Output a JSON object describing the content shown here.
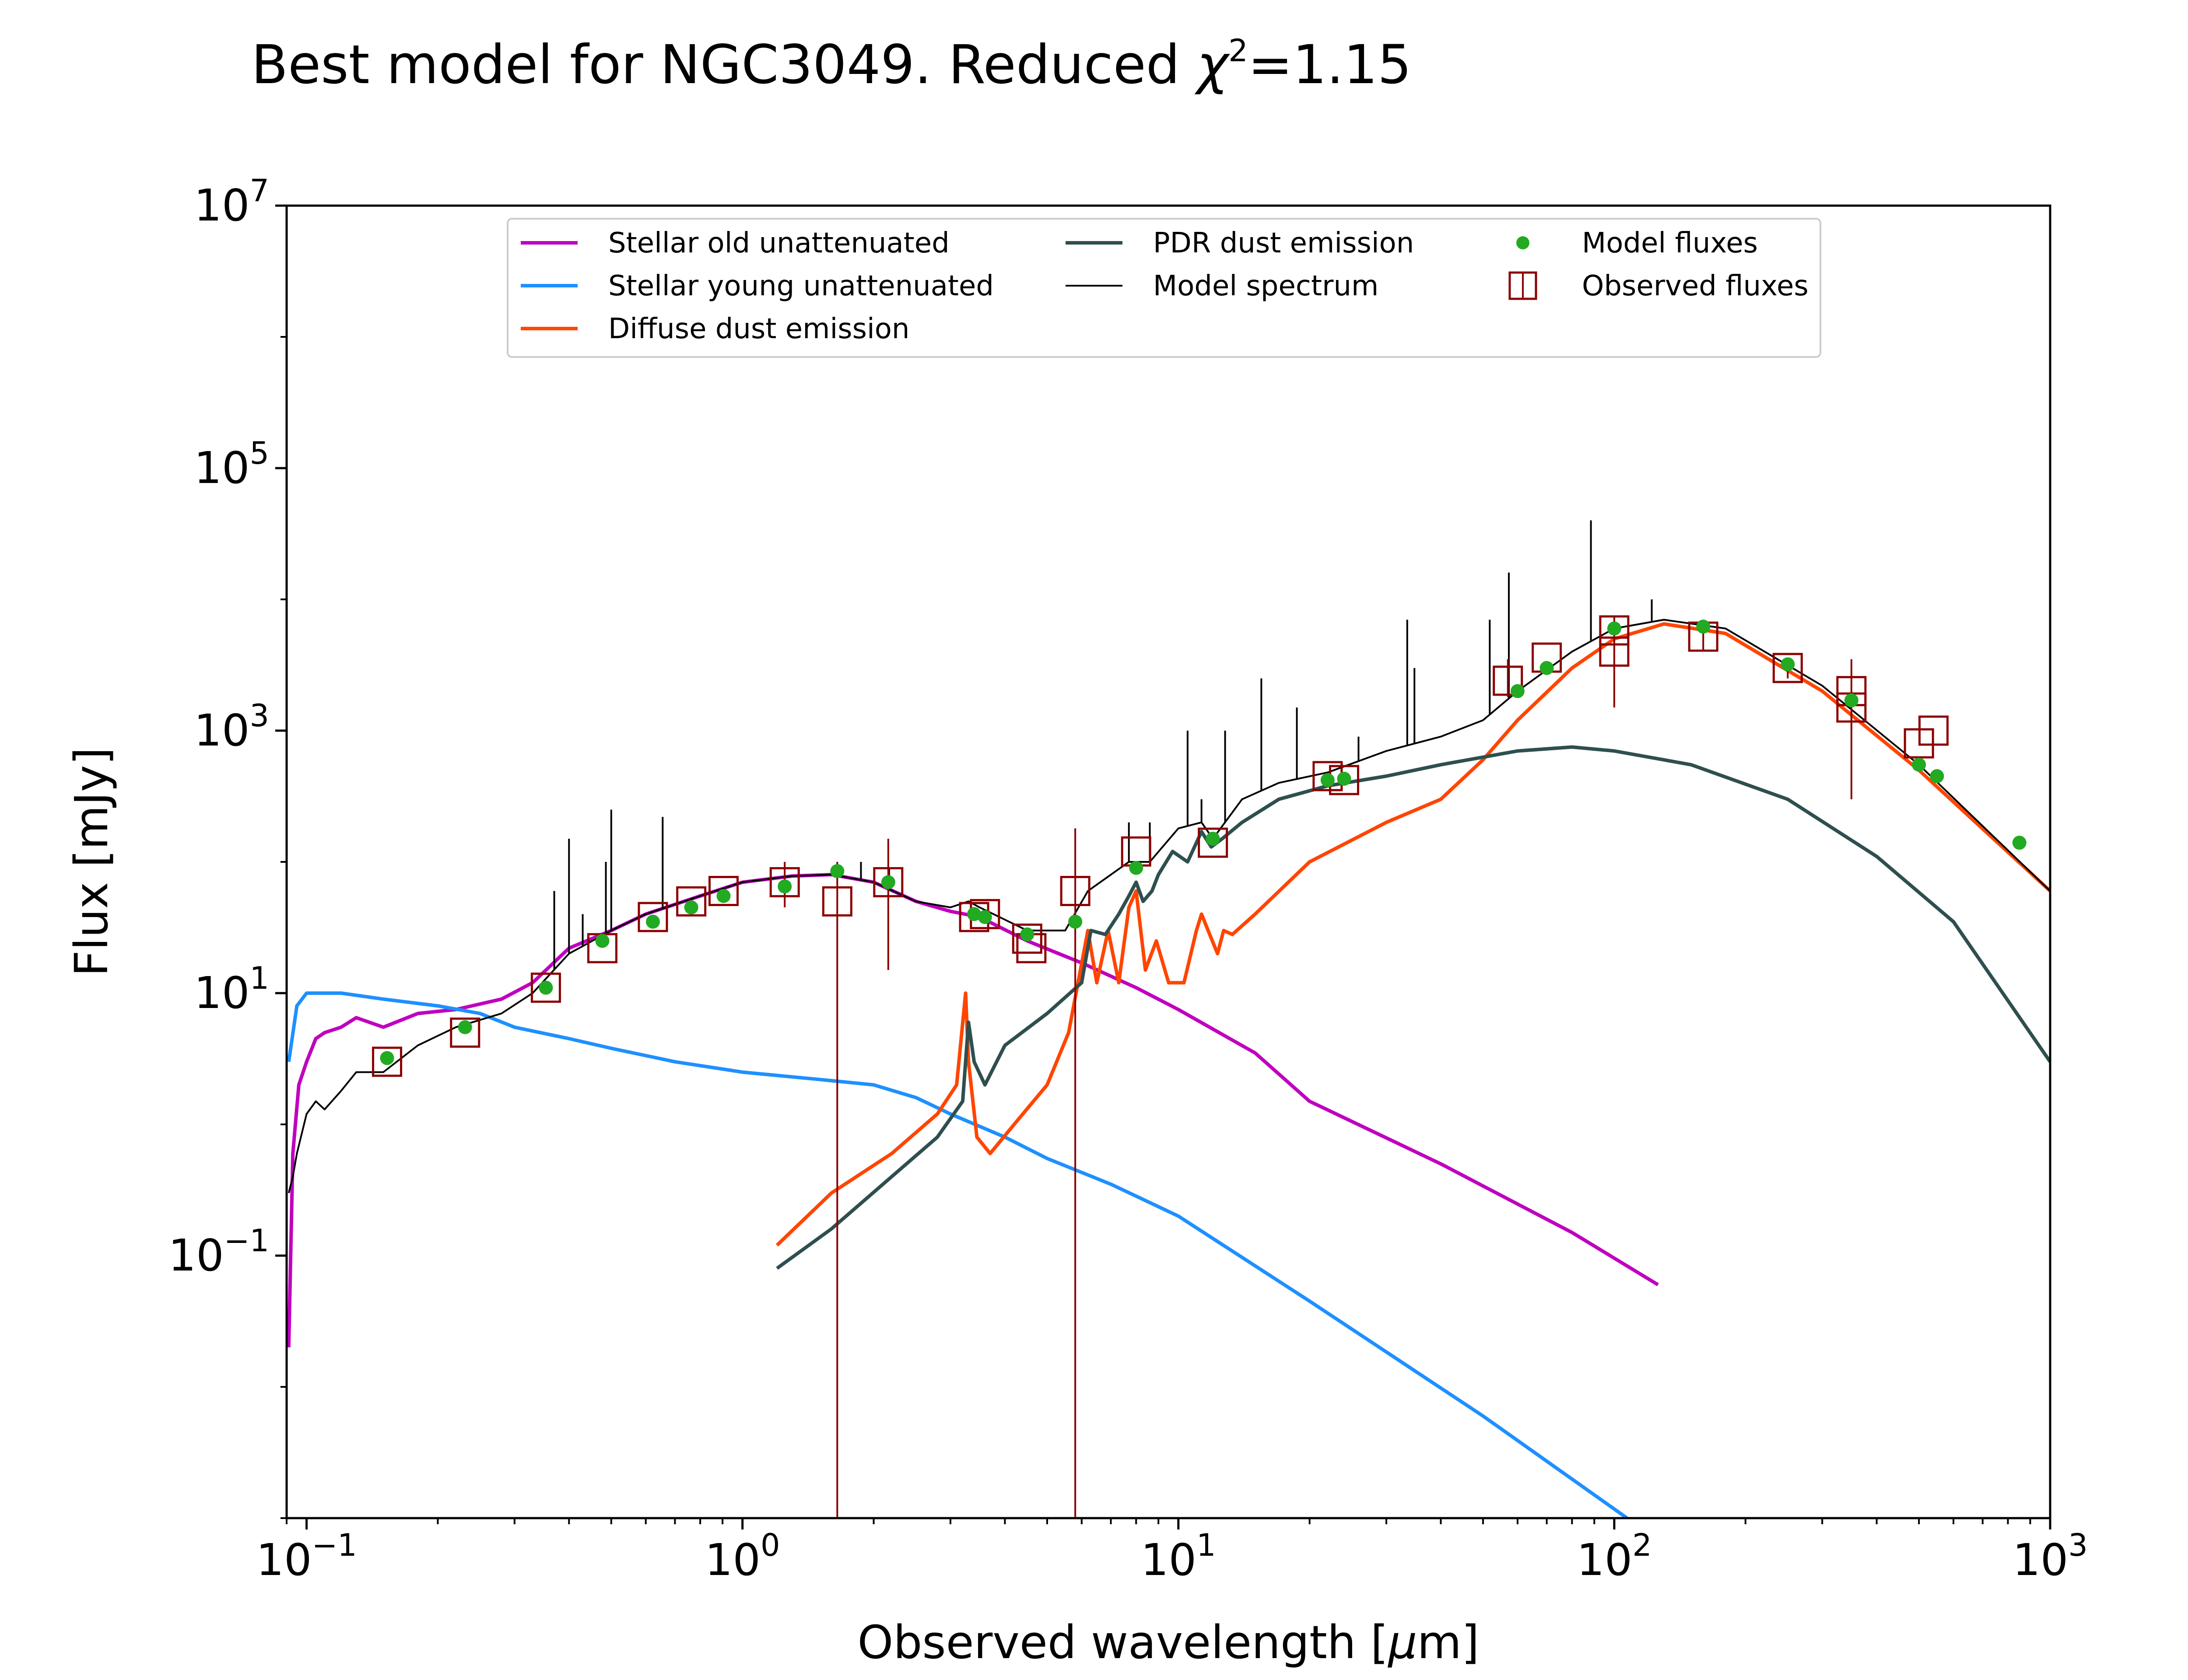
{
  "chart_data": {
    "type": "line",
    "title": "Best model for NGC3049. Reduced χ²=1.15",
    "title_parts": {
      "prefix": "Best model for NGC3049. Reduced ",
      "chi": "χ",
      "sup": "2",
      "suffix": "=1.15"
    },
    "xlabel": "Observed wavelength [μm]",
    "xlabel_parts": {
      "prefix": "Observed wavelength [",
      "mu": "μ",
      "suffix": "m]"
    },
    "ylabel": "Flux [mJy]",
    "xscale": "log",
    "yscale": "log",
    "xlim": [
      0.09,
      1000
    ],
    "ylim": [
      0.001,
      10000000
    ],
    "xticks": [
      {
        "value": 0.1,
        "base": "10",
        "exp": "−1"
      },
      {
        "value": 1,
        "base": "10",
        "exp": "0"
      },
      {
        "value": 10,
        "base": "10",
        "exp": "1"
      },
      {
        "value": 100,
        "base": "10",
        "exp": "2"
      },
      {
        "value": 1000,
        "base": "10",
        "exp": "3"
      }
    ],
    "yticks": [
      {
        "value": 0.1,
        "base": "10",
        "exp": "−1"
      },
      {
        "value": 10,
        "base": "10",
        "exp": "1"
      },
      {
        "value": 1000,
        "base": "10",
        "exp": "3"
      },
      {
        "value": 100000,
        "base": "10",
        "exp": "5"
      },
      {
        "value": 10000000,
        "base": "10",
        "exp": "7"
      }
    ],
    "grid": false,
    "legend_position": "top-center",
    "legend": [
      {
        "label": "Stellar old unattenuated",
        "kind": "line",
        "color": "#bf00bf"
      },
      {
        "label": "Stellar young unattenuated",
        "kind": "line",
        "color": "#1e90ff"
      },
      {
        "label": "Diffuse dust emission",
        "kind": "line",
        "color": "#ff4500"
      },
      {
        "label": "PDR dust emission",
        "kind": "line",
        "color": "#2f4f4f"
      },
      {
        "label": "Model spectrum",
        "kind": "thinline",
        "color": "#000000"
      },
      {
        "label": "Model fluxes",
        "kind": "dot",
        "color": "#22aa22"
      },
      {
        "label": "Observed fluxes",
        "kind": "square",
        "color": "#8b0000"
      }
    ],
    "series": [
      {
        "name": "Stellar old unattenuated",
        "color": "#bf00bf",
        "x": [
          0.091,
          0.093,
          0.096,
          0.1,
          0.105,
          0.11,
          0.12,
          0.13,
          0.15,
          0.18,
          0.22,
          0.28,
          0.33,
          0.4,
          0.5,
          0.6,
          0.8,
          1.0,
          1.3,
          1.6,
          2.0,
          2.5,
          3.0,
          3.5,
          4.5,
          6.0,
          8.0,
          10.0,
          15.0,
          20.0,
          40.0,
          80.0,
          126.0
        ],
        "y": [
          0.02,
          0.6,
          2.0,
          3.0,
          4.5,
          5.0,
          5.5,
          6.5,
          5.5,
          7.0,
          7.5,
          9.0,
          12.0,
          22.0,
          30.0,
          40.0,
          55.0,
          70.0,
          78.0,
          80.0,
          70.0,
          50.0,
          42.0,
          38.0,
          25.0,
          17.0,
          11.0,
          7.5,
          3.5,
          1.5,
          0.5,
          0.15,
          0.06
        ]
      },
      {
        "name": "Stellar young unattenuated",
        "color": "#1e90ff",
        "x": [
          0.091,
          0.095,
          0.1,
          0.12,
          0.15,
          0.2,
          0.25,
          0.3,
          0.4,
          0.5,
          0.7,
          1.0,
          1.5,
          2.0,
          2.5,
          3.0,
          4.0,
          5.0,
          7.0,
          10.0,
          20.0,
          50.0,
          107.0
        ],
        "y": [
          3.0,
          8.0,
          10.0,
          10.0,
          9.0,
          8.0,
          7.0,
          5.5,
          4.5,
          3.8,
          3.0,
          2.5,
          2.2,
          2.0,
          1.6,
          1.2,
          0.8,
          0.55,
          0.35,
          0.2,
          0.045,
          0.006,
          0.001
        ]
      },
      {
        "name": "Diffuse dust emission",
        "color": "#ff4500",
        "x": [
          1.2,
          1.6,
          2.2,
          2.8,
          3.1,
          3.25,
          3.3,
          3.45,
          3.7,
          4.2,
          5.0,
          5.6,
          6.2,
          6.5,
          6.9,
          7.3,
          7.7,
          8.0,
          8.4,
          8.9,
          9.5,
          10.3,
          11.0,
          11.3,
          11.8,
          12.3,
          12.7,
          13.3,
          15.0,
          20.0,
          30.0,
          40.0,
          50.0,
          60.0,
          80.0,
          100.0,
          130.0,
          180.0,
          300.0,
          500.0,
          1000.0
        ],
        "y": [
          0.12,
          0.3,
          0.6,
          1.2,
          2.0,
          10.0,
          3.0,
          0.8,
          0.6,
          1.0,
          2.0,
          5.0,
          30.0,
          12.0,
          30.0,
          12.0,
          45.0,
          60.0,
          15.0,
          25.0,
          12.0,
          12.0,
          30.0,
          40.0,
          28.0,
          20.0,
          30.0,
          28.0,
          40.0,
          100.0,
          200.0,
          300.0,
          600.0,
          1200.0,
          3000.0,
          5000.0,
          6500.0,
          5500.0,
          2000.0,
          500.0,
          60.0
        ]
      },
      {
        "name": "PDR dust emission",
        "color": "#2f4f4f",
        "x": [
          1.2,
          1.6,
          2.2,
          2.8,
          3.2,
          3.3,
          3.4,
          3.6,
          4.0,
          5.0,
          6.0,
          6.3,
          6.8,
          7.3,
          7.7,
          8.0,
          8.3,
          8.7,
          9.0,
          9.7,
          10.5,
          11.3,
          11.9,
          12.6,
          14.0,
          17.0,
          22.0,
          30.0,
          40.0,
          60.0,
          80.0,
          100.0,
          150.0,
          250.0,
          400.0,
          600.0,
          1000.0
        ],
        "y": [
          0.08,
          0.16,
          0.4,
          0.8,
          1.5,
          6.0,
          3.0,
          2.0,
          4.0,
          7.0,
          12.0,
          30.0,
          28.0,
          40.0,
          55.0,
          70.0,
          50.0,
          60.0,
          80.0,
          120.0,
          100.0,
          170.0,
          130.0,
          150.0,
          200.0,
          300.0,
          380.0,
          450.0,
          550.0,
          700.0,
          750.0,
          700.0,
          550.0,
          300.0,
          110.0,
          35.0,
          3.0
        ]
      },
      {
        "name": "Model spectrum",
        "color": "#000000",
        "x": [
          0.091,
          0.093,
          0.095,
          0.1,
          0.105,
          0.11,
          0.12,
          0.13,
          0.15,
          0.18,
          0.22,
          0.28,
          0.33,
          0.4,
          0.5,
          0.6,
          0.8,
          1.0,
          1.3,
          1.6,
          2.0,
          2.5,
          3.0,
          3.3,
          3.5,
          4.5,
          5.5,
          6.2,
          7.7,
          8.0,
          8.6,
          10.0,
          11.3,
          12.0,
          14.0,
          17.0,
          22.0,
          30.0,
          40.0,
          50.0,
          60.0,
          80.0,
          100.0,
          130.0,
          180.0,
          300.0,
          500.0,
          1000.0
        ],
        "y": [
          0.3,
          0.4,
          0.6,
          1.2,
          1.5,
          1.3,
          1.8,
          2.5,
          2.5,
          4.0,
          5.5,
          7.0,
          10.0,
          20.0,
          30.0,
          40.0,
          55.0,
          70.0,
          78.0,
          80.0,
          70.0,
          50.0,
          45.0,
          50.0,
          45.0,
          30.0,
          30.0,
          60.0,
          100.0,
          100.0,
          100.0,
          180.0,
          200.0,
          150.0,
          300.0,
          400.0,
          480.0,
          700.0,
          900.0,
          1200.0,
          2000.0,
          4000.0,
          6000.0,
          7000.0,
          6000.0,
          2200.0,
          550.0,
          60.0
        ]
      }
    ],
    "model_fluxes": {
      "x": [
        0.153,
        0.231,
        0.354,
        0.477,
        0.623,
        0.763,
        0.905,
        1.25,
        1.65,
        2.16,
        3.4,
        3.6,
        4.5,
        5.8,
        8.0,
        12.0,
        22.0,
        24.0,
        60.0,
        70.0,
        100.0,
        160.0,
        250.0,
        350.0,
        500.0,
        550.0,
        850.0
      ],
      "y": [
        3.2,
        5.5,
        11.0,
        25.0,
        35.0,
        45.0,
        55.0,
        65.0,
        85.0,
        70.0,
        40.0,
        38.0,
        28.0,
        35.0,
        90.0,
        150.0,
        420.0,
        430.0,
        2000.0,
        3000.0,
        6000.0,
        6200.0,
        3200.0,
        1700.0,
        550.0,
        450.0,
        140.0
      ]
    },
    "observed_fluxes": {
      "x": [
        0.153,
        0.231,
        0.354,
        0.477,
        0.623,
        0.763,
        0.905,
        1.25,
        1.65,
        2.16,
        3.4,
        3.6,
        4.5,
        4.6,
        5.8,
        8.0,
        12.0,
        22.0,
        24.0,
        57.0,
        70.0,
        100.0,
        100.0,
        160.0,
        250.0,
        350.0,
        350.0,
        500.0,
        540.0
      ],
      "y": [
        3.0,
        5.0,
        11.0,
        22.0,
        38.0,
        50.0,
        60.0,
        70.0,
        50.0,
        70.0,
        38.0,
        40.0,
        26.0,
        22.0,
        60.0,
        120.0,
        140.0,
        450.0,
        420.0,
        2400.0,
        3600.0,
        5800.0,
        4000.0,
        5200.0,
        3000.0,
        2000.0,
        1500.0,
        800.0,
        1000.0
      ],
      "yerr_low": [
        null,
        null,
        null,
        null,
        null,
        null,
        null,
        45.0,
        0.001,
        15.0,
        null,
        null,
        null,
        null,
        0.001,
        null,
        null,
        null,
        null,
        1800.0,
        null,
        3000.0,
        1500.0,
        4000.0,
        2500.0,
        300.0,
        1000.0,
        null,
        null
      ],
      "yerr_high": [
        null,
        null,
        null,
        null,
        null,
        null,
        null,
        100.0,
        100.0,
        150.0,
        null,
        null,
        null,
        null,
        180.0,
        null,
        null,
        null,
        null,
        3500.0,
        null,
        7500.0,
        7000.0,
        7000.0,
        3500.0,
        3500.0,
        2000.0,
        null,
        null
      ]
    },
    "emission_lines": {
      "x": [
        0.37,
        0.4,
        0.43,
        0.486,
        0.5,
        0.656,
        1.87,
        2.17,
        6.2,
        7.7,
        8.6,
        10.5,
        11.3,
        12.8,
        15.5,
        18.7,
        25.9,
        33.5,
        34.8,
        51.8,
        57.3,
        88.4,
        121.9
      ],
      "y": [
        60.0,
        150.0,
        40.0,
        100.0,
        250.0,
        220.0,
        100.0,
        90.0,
        60.0,
        200.0,
        200.0,
        1000.0,
        300.0,
        1000.0,
        2500.0,
        1500.0,
        900.0,
        7000.0,
        3000.0,
        7000.0,
        16000.0,
        40000.0,
        10000.0
      ]
    }
  }
}
